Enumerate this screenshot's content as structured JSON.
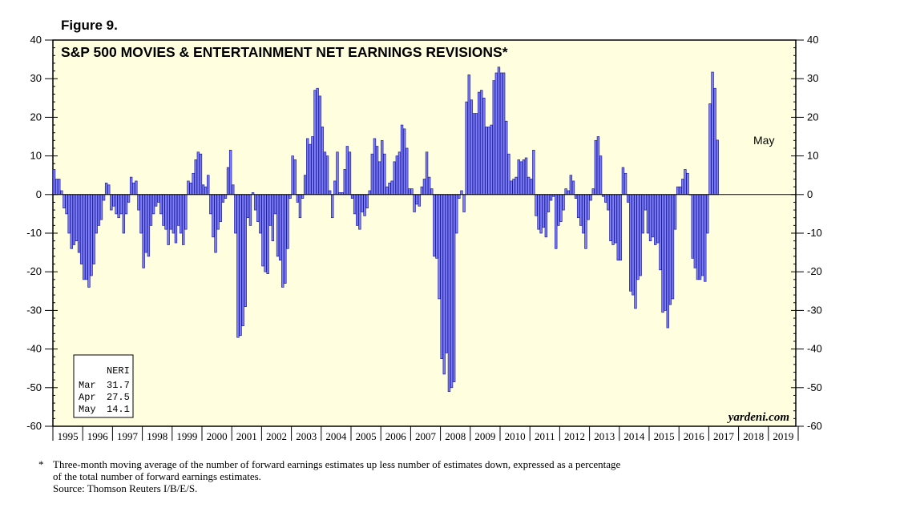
{
  "figure_label": "Figure 9.",
  "chart_data": {
    "type": "bar",
    "title": "S&P 500 MOVIES & ENTERTAINMENT NET EARNINGS REVISIONS*",
    "series_name": "NERI",
    "frequency": "monthly",
    "start": "1995-01",
    "ylim": [
      -60,
      40
    ],
    "yticks": [
      40,
      30,
      20,
      10,
      0,
      -10,
      -20,
      -30,
      -40,
      -50,
      -60
    ],
    "ytick_labels_left": [
      "40",
      "30",
      "20",
      "10",
      "0",
      "-10",
      "-20",
      "-30",
      "-40",
      "-50",
      "-60"
    ],
    "ytick_labels_right": [
      "40",
      "30",
      "20",
      "10",
      "0",
      "-10",
      "-20",
      "-30",
      "-40",
      "-50",
      "-60"
    ],
    "year_labels": [
      "1995",
      "1996",
      "1997",
      "1998",
      "1999",
      "2000",
      "2001",
      "2002",
      "2003",
      "2004",
      "2005",
      "2006",
      "2007",
      "2008",
      "2009",
      "2010",
      "2011",
      "2012",
      "2013",
      "2014",
      "2015",
      "2016",
      "2017",
      "2018",
      "2019"
    ],
    "values": [
      6.5,
      4,
      4,
      1,
      -3.5,
      -5,
      -10,
      -14,
      -13,
      -12,
      -15,
      -18,
      -22,
      -22,
      -24,
      -21,
      -18,
      -10,
      -8,
      -6.5,
      -1.5,
      3,
      2.5,
      -4,
      -3,
      -5,
      -6,
      -5,
      -10,
      -5,
      -2,
      4.5,
      3,
      3.5,
      -4,
      -10,
      -19,
      -15,
      -16,
      -8,
      -5,
      -3,
      -2,
      -5,
      -8,
      -9,
      -13,
      -9,
      -10,
      -12.5,
      -8,
      -10,
      -13,
      -9,
      3.5,
      3,
      5.5,
      9,
      11,
      10.5,
      2.5,
      2,
      5,
      -5,
      -11,
      -15,
      -9,
      -7,
      -2,
      -1,
      7,
      11.5,
      2.5,
      -10,
      -37,
      -36.5,
      -34,
      -29,
      -6,
      -8,
      0.5,
      -4,
      -7,
      -10,
      -18.5,
      -20,
      -20.5,
      -8,
      -12,
      -5,
      -16,
      -17,
      -24,
      -23,
      -14,
      -1,
      10,
      9,
      -2,
      -6,
      -1,
      5,
      14.5,
      13,
      15,
      27,
      27.5,
      25.5,
      17.5,
      11,
      10,
      1,
      -6,
      3.5,
      11,
      0.5,
      0.5,
      6.5,
      12.5,
      11,
      -1,
      -5,
      -8,
      -9,
      -4.5,
      -5.5,
      -3.5,
      1,
      10.5,
      14.5,
      12.5,
      8.5,
      14,
      10.5,
      2,
      3,
      3.5,
      8.5,
      10,
      11,
      18,
      17,
      12,
      1.5,
      1.5,
      -4.5,
      -2.5,
      -3,
      2,
      4,
      11,
      4.5,
      1.5,
      -16,
      -16.5,
      -27,
      -42.5,
      -46.5,
      -41,
      -51,
      -50,
      -48.5,
      -10,
      -1,
      1,
      -4.5,
      24,
      31,
      24.5,
      21,
      21,
      26.5,
      27,
      25,
      17.5,
      17.5,
      18,
      29.5,
      31.5,
      33,
      31.5,
      31.5,
      19,
      10.5,
      3.5,
      4,
      4.5,
      9,
      8.5,
      9,
      9.5,
      4.5,
      4,
      11.5,
      -5.5,
      -9,
      -10,
      -8.5,
      -11,
      -4.5,
      -1.5,
      -0.5,
      -14,
      -8,
      -7,
      -4,
      1.5,
      1,
      5,
      3.5,
      -1,
      -6,
      -8,
      -10,
      -14,
      -6.5,
      -1.5,
      1.5,
      14,
      15,
      10,
      -0.5,
      -2,
      -4,
      -12,
      -13,
      -12.5,
      -17,
      -17,
      7,
      5.5,
      -2,
      -25,
      -26,
      -29.5,
      -22,
      -21,
      -10,
      -4,
      -10,
      -12,
      -11,
      -13,
      -12.5,
      -19.5,
      -30.5,
      -30,
      -34.5,
      -28.5,
      -27,
      -9,
      2,
      2,
      4,
      6.5,
      5.5,
      0,
      -16.5,
      -19,
      -22,
      -22,
      -21,
      -22.5,
      -10,
      23.5,
      31.7,
      27.5,
      14.1
    ],
    "annotation": "May",
    "legend_box": {
      "header": "NERI",
      "rows": [
        {
          "month": "Mar",
          "value": "31.7"
        },
        {
          "month": "Apr",
          "value": "27.5"
        },
        {
          "month": "May",
          "value": "14.1"
        }
      ]
    },
    "source_brand": "yardeni.com"
  },
  "colors": {
    "plot_background": "#ffffdf",
    "bar_fill": "#7f7ff7",
    "bar_stroke": "#1c1c9c",
    "zero_line": "#000000"
  },
  "footnote": {
    "marker": "*",
    "line1": "Three-month moving average of the number of forward earnings estimates up less number of estimates down, expressed as a percentage",
    "line2": "of the total number of forward earnings estimates.",
    "source": "Source: Thomson Reuters I/B/E/S."
  }
}
